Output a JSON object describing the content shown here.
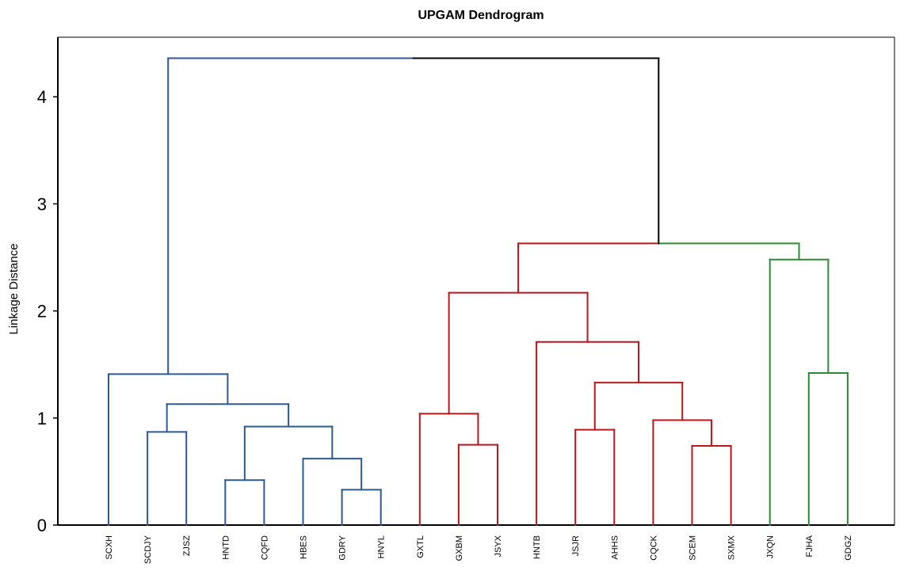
{
  "chart_data": {
    "type": "dendrogram",
    "title": "UPGAM Dendrogram",
    "ylabel": "Linkage Distance",
    "xlabel": "",
    "ylim": [
      0,
      4.5
    ],
    "yticks": [
      "0",
      "1",
      "2",
      "3",
      "4"
    ],
    "grid": false,
    "leaves": [
      "SCXH",
      "SCDJY",
      "ZJSZ",
      "HNTD",
      "CQFD",
      "HBES",
      "GDRY",
      "HNYL",
      "GXTL",
      "GXBM",
      "JSYX",
      "HNTB",
      "JSJR",
      "AHHS",
      "CQCK",
      "SCEM",
      "SXMX",
      "JXQN",
      "FJHA",
      "GDGZ"
    ],
    "clusters": [
      {
        "name": "blue",
        "color": "#2e5a94"
      },
      {
        "name": "red",
        "color": "#c0141c"
      },
      {
        "name": "green",
        "color": "#2e8b35"
      },
      {
        "name": "root",
        "color": "#000000"
      }
    ],
    "merges": [
      {
        "left": "HBES+GDRY+HNYL:GDRY",
        "a": "GDRY",
        "b": "HNYL",
        "height": 0.33,
        "color": "#2e5a94"
      },
      {
        "a": "HNTD",
        "b": "CQFD",
        "height": 0.42,
        "color": "#2e5a94"
      },
      {
        "a": "HBES",
        "b": "GDRY|HNYL",
        "height": 0.62,
        "color": "#2e5a94"
      },
      {
        "a": "SCDJY",
        "b": "ZJSZ",
        "height": 0.87,
        "color": "#2e5a94"
      },
      {
        "a": "HNTD|CQFD",
        "b": "HBES|GDRY|HNYL",
        "height": 0.92,
        "color": "#2e5a94"
      },
      {
        "a": "SCDJY|ZJSZ",
        "b": "HNTD|CQFD|HBES|GDRY|HNYL",
        "height": 1.13,
        "color": "#2e5a94"
      },
      {
        "a": "SCXH",
        "b": "SCDJY|ZJSZ|HNTD|CQFD|HBES|GDRY|HNYL",
        "height": 1.41,
        "color": "#2e5a94"
      },
      {
        "a": "SCEM",
        "b": "SXMX",
        "height": 0.74,
        "color": "#c0141c"
      },
      {
        "a": "GXBM",
        "b": "JSYX",
        "height": 0.75,
        "color": "#c0141c"
      },
      {
        "a": "JSJR",
        "b": "AHHS",
        "height": 0.89,
        "color": "#c0141c"
      },
      {
        "a": "CQCK",
        "b": "SCEM|SXMX",
        "height": 0.98,
        "color": "#c0141c"
      },
      {
        "a": "GXTL",
        "b": "GXBM|JSYX",
        "height": 1.04,
        "color": "#c0141c"
      },
      {
        "a": "JSJR|AHHS",
        "b": "CQCK|SCEM|SXMX",
        "height": 1.33,
        "color": "#c0141c"
      },
      {
        "a": "HNTB",
        "b": "JSJR|AHHS|CQCK|SCEM|SXMX",
        "height": 1.71,
        "color": "#c0141c"
      },
      {
        "a": "GXTL|GXBM|JSYX",
        "b": "HNTB|JSJR|AHHS|CQCK|SCEM|SXMX",
        "height": 2.17,
        "color": "#c0141c"
      },
      {
        "a": "FJHA",
        "b": "GDGZ",
        "height": 1.42,
        "color": "#2e8b35"
      },
      {
        "a": "JXQN",
        "b": "FJHA|GDGZ",
        "height": 2.48,
        "color": "#2e8b35"
      },
      {
        "a": "GXTL|GXBM|JSYX|HNTB|JSJR|AHHS|CQCK|SCEM|SXMX",
        "b": "JXQN|FJHA|GDGZ",
        "height": 2.63,
        "color": "#2e8b35",
        "left_color": "#c0141c"
      },
      {
        "a": "SCXH|SCDJY|ZJSZ|HNTD|CQFD|HBES|GDRY|HNYL",
        "b": "GXTL|GXBM|JSYX|HNTB|JSJR|AHHS|CQCK|SCEM|SXMX|JXQN|FJHA|GDGZ",
        "height": 4.36,
        "color": "#000000",
        "left_color": "#2e5a94"
      }
    ]
  }
}
